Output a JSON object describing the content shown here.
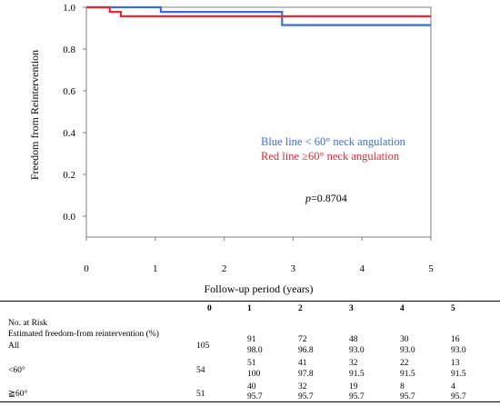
{
  "chart_data": {
    "type": "line",
    "xlabel": "Follow-up period (years)",
    "ylabel": "Freedom from Reintervention",
    "xlim": [
      0,
      5
    ],
    "ylim": [
      -0.1,
      1.0
    ],
    "x_ticks": [
      "0",
      "1",
      "2",
      "3",
      "4",
      "5"
    ],
    "y_ticks": [
      "0.0",
      "0.2",
      "0.4",
      "0.6",
      "0.8",
      "1.0"
    ],
    "grid": false,
    "step": true,
    "series": [
      {
        "name": "Blue line < 60° neck angulation",
        "color": "#3a6fd8",
        "x": [
          0,
          1.08,
          1.08,
          2.84,
          2.84,
          5.0
        ],
        "y": [
          1.0,
          1.0,
          0.978,
          0.978,
          0.915,
          0.915
        ]
      },
      {
        "name": "Red line ≥60° neck angulation",
        "color": "#e52a35",
        "x": [
          0,
          0.34,
          0.34,
          0.5,
          0.5,
          5.0
        ],
        "y": [
          1.0,
          1.0,
          0.978,
          0.978,
          0.957,
          0.957
        ]
      }
    ],
    "annotations": [
      {
        "italic": "p",
        "text": "=0.8704",
        "x": 3.18,
        "y": 0.07
      }
    ]
  },
  "risk_table": {
    "header": [
      "0",
      "1",
      "2",
      "3",
      "4",
      "5"
    ],
    "section_label": "No. at Risk",
    "estimate_label": "Estimated freedom-from reintervention (%)",
    "rows": [
      {
        "label": "All",
        "at_risk": [
          "105",
          "91",
          "72",
          "48",
          "30",
          "16"
        ],
        "freedom": [
          "",
          "98.0",
          "96.8",
          "93.0",
          "93.0",
          "93.0"
        ]
      },
      {
        "label": "<60°",
        "at_risk": [
          "54",
          "51",
          "41",
          "32",
          "22",
          "13"
        ],
        "freedom": [
          "",
          "100",
          "97.8",
          "91.5",
          "91.5",
          "91.5"
        ]
      },
      {
        "label": "≧60°",
        "at_risk": [
          "51",
          "40",
          "32",
          "19",
          "8",
          "4"
        ],
        "freedom": [
          "",
          "95.7",
          "95.7",
          "95.7",
          "95.7",
          "95.7"
        ]
      }
    ]
  }
}
